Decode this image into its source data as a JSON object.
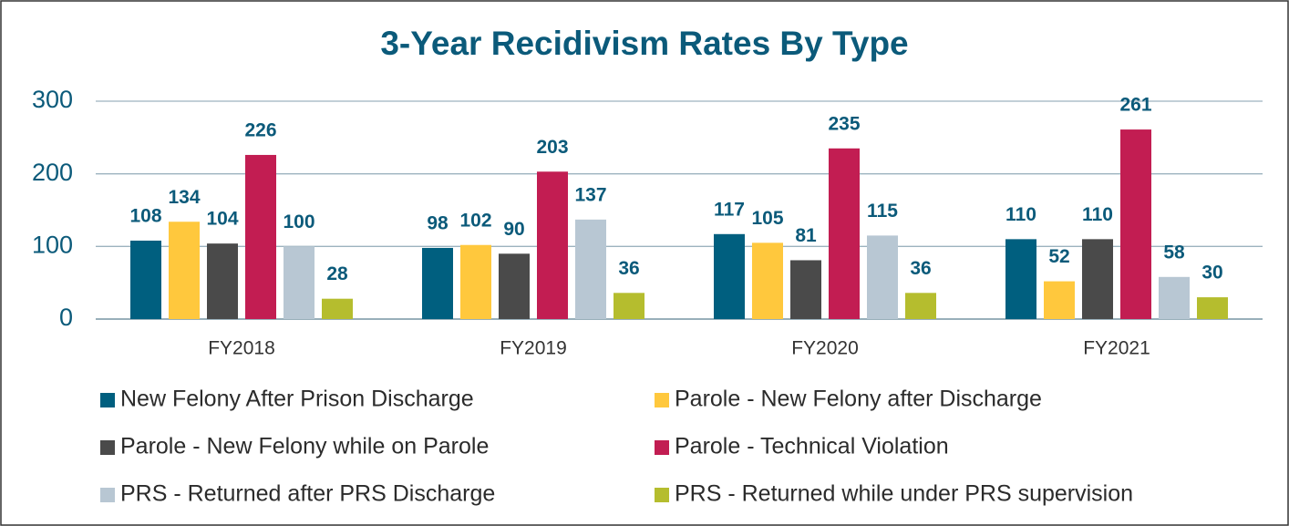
{
  "chart_data": {
    "type": "bar",
    "title": "3-Year Recidivism Rates By Type",
    "categories": [
      "FY2018",
      "FY2019",
      "FY2020",
      "FY2021"
    ],
    "series": [
      {
        "name": "New Felony After Prison Discharge",
        "color": "#005f7f",
        "values": [
          108,
          98,
          117,
          110
        ]
      },
      {
        "name": "Parole - New Felony after Discharge",
        "color": "#ffc83d",
        "values": [
          134,
          102,
          105,
          52
        ]
      },
      {
        "name": "Parole - New Felony while on Parole",
        "color": "#4a4a4a",
        "values": [
          104,
          90,
          81,
          110
        ]
      },
      {
        "name": "Parole - Technical Violation",
        "color": "#c21d52",
        "values": [
          226,
          203,
          235,
          261
        ]
      },
      {
        "name": "PRS - Returned after PRS Discharge",
        "color": "#b8c7d3",
        "values": [
          100,
          137,
          115,
          58
        ]
      },
      {
        "name": "PRS - Returned while under PRS supervision",
        "color": "#b5bd2e",
        "values": [
          28,
          36,
          36,
          30
        ]
      }
    ],
    "ylim": [
      0,
      300
    ],
    "yticks": [
      0,
      100,
      200,
      300
    ],
    "grid": true,
    "legend": "bottom"
  }
}
